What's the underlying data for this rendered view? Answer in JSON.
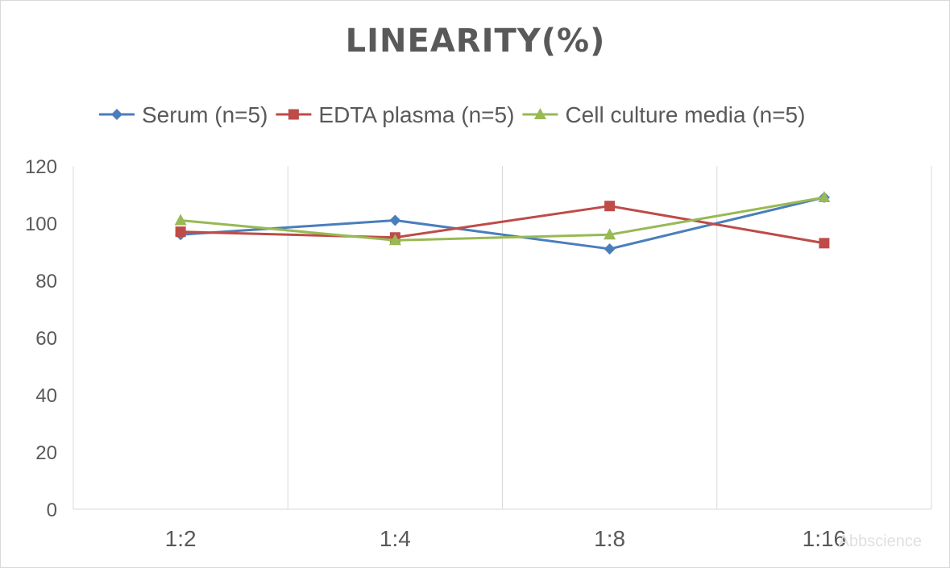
{
  "chart_data": {
    "type": "line",
    "title": "LINEARITY(%)",
    "categories": [
      "1:2",
      "1:4",
      "1:8",
      "1:16"
    ],
    "ylim": [
      0,
      120
    ],
    "yticks": [
      0,
      20,
      40,
      60,
      80,
      100,
      120
    ],
    "grid": "vertical",
    "legend_position": "top",
    "series": [
      {
        "name": "Serum (n=5)",
        "values": [
          96,
          101,
          91,
          109
        ],
        "color": "#4a7ebb",
        "marker": "diamond"
      },
      {
        "name": "EDTA plasma (n=5)",
        "values": [
          97,
          95,
          106,
          93
        ],
        "color": "#be4b48",
        "marker": "square"
      },
      {
        "name": "Cell culture media (n=5)",
        "values": [
          101,
          94,
          96,
          109
        ],
        "color": "#98b954",
        "marker": "triangle"
      }
    ]
  },
  "watermark": "Abbscience"
}
